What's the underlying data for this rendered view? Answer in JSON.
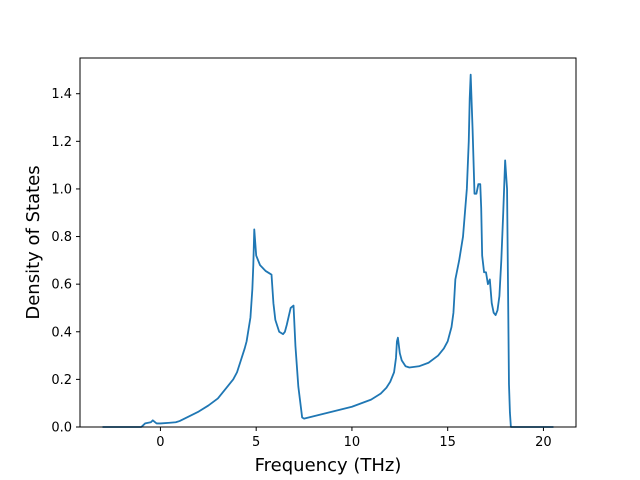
{
  "chart_data": {
    "type": "line",
    "title": "",
    "xlabel": "Frequency (THz)",
    "ylabel": "Density of States",
    "xlim": [
      -4.2,
      21.7
    ],
    "ylim": [
      0.0,
      1.55
    ],
    "xticks": [
      0,
      5,
      10,
      15,
      20
    ],
    "yticks": [
      0.0,
      0.2,
      0.4,
      0.6,
      0.8,
      1.0,
      1.2,
      1.4
    ],
    "grid": false,
    "legend": "none",
    "series": [
      {
        "color": "#1f77b4",
        "x": [
          -3.0,
          -1.5,
          -1.0,
          -0.8,
          -0.5,
          -0.4,
          -0.2,
          0.0,
          0.5,
          0.8,
          1.0,
          1.5,
          2.0,
          2.5,
          3.0,
          3.5,
          3.8,
          4.0,
          4.2,
          4.4,
          4.5,
          4.6,
          4.7,
          4.8,
          4.85,
          4.9,
          5.0,
          5.2,
          5.5,
          5.7,
          5.8,
          5.9,
          6.0,
          6.2,
          6.4,
          6.5,
          6.6,
          6.8,
          6.95,
          7.05,
          7.2,
          7.4,
          7.5,
          8.0,
          9.0,
          10.0,
          11.0,
          11.5,
          11.8,
          12.0,
          12.2,
          12.3,
          12.35,
          12.4,
          12.5,
          12.6,
          12.8,
          13.0,
          13.5,
          14.0,
          14.5,
          14.8,
          15.0,
          15.1,
          15.2,
          15.3,
          15.4,
          15.6,
          15.8,
          15.9,
          16.0,
          16.1,
          16.15,
          16.2,
          16.3,
          16.4,
          16.5,
          16.6,
          16.7,
          16.75,
          16.8,
          16.9,
          17.0,
          17.1,
          17.2,
          17.3,
          17.4,
          17.5,
          17.6,
          17.7,
          17.8,
          17.9,
          18.0,
          18.1,
          18.2,
          18.25,
          18.3,
          18.35,
          18.4,
          18.5,
          18.6,
          18.7,
          19.0,
          20.5
        ],
        "y": [
          0.0,
          0.0,
          0.0,
          0.015,
          0.02,
          0.028,
          0.015,
          0.015,
          0.018,
          0.02,
          0.025,
          0.045,
          0.065,
          0.09,
          0.12,
          0.17,
          0.2,
          0.23,
          0.28,
          0.33,
          0.36,
          0.41,
          0.46,
          0.58,
          0.68,
          0.83,
          0.72,
          0.68,
          0.655,
          0.645,
          0.64,
          0.52,
          0.45,
          0.4,
          0.39,
          0.4,
          0.43,
          0.5,
          0.51,
          0.34,
          0.17,
          0.04,
          0.035,
          0.045,
          0.065,
          0.085,
          0.115,
          0.14,
          0.165,
          0.19,
          0.23,
          0.29,
          0.36,
          0.375,
          0.31,
          0.28,
          0.255,
          0.25,
          0.255,
          0.27,
          0.3,
          0.33,
          0.36,
          0.39,
          0.42,
          0.48,
          0.62,
          0.7,
          0.8,
          0.9,
          1.0,
          1.2,
          1.38,
          1.48,
          1.25,
          0.98,
          0.98,
          1.02,
          1.02,
          0.92,
          0.72,
          0.65,
          0.65,
          0.6,
          0.62,
          0.52,
          0.48,
          0.47,
          0.49,
          0.55,
          0.7,
          0.9,
          1.12,
          1.0,
          0.18,
          0.06,
          0.0,
          0.0,
          0.0,
          0.0,
          0.0,
          0.0,
          0.0,
          0.0
        ]
      }
    ]
  }
}
